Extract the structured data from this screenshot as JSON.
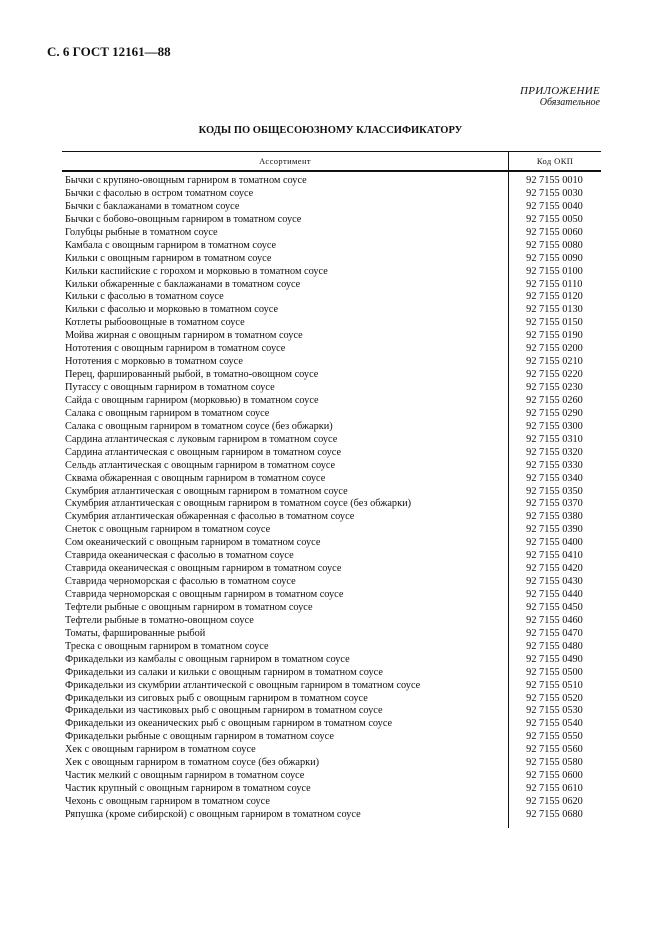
{
  "header": {
    "page_ref": "С. 6 ГОСТ 12161—88"
  },
  "appendix": {
    "label": "ПРИЛОЖЕНИЕ",
    "status": "Обязательное"
  },
  "title": "КОДЫ ПО ОБЩЕСОЮЗНОМУ КЛАССИФИКАТОРУ",
  "table": {
    "columns": [
      "Ассортимент",
      "Код ОКП"
    ],
    "rows": [
      [
        "Бычки с крупяно-овощным гарниром в томатном соусе",
        "92 7155 0010"
      ],
      [
        "Бычки с фасолью в остром томатном соусе",
        "92 7155 0030"
      ],
      [
        "Бычки с баклажанами в томатном соусе",
        "92 7155 0040"
      ],
      [
        "Бычки с бобово-овощным гарниром в томатном соусе",
        "92 7155 0050"
      ],
      [
        "Голубцы рыбные в томатном соусе",
        "92 7155 0060"
      ],
      [
        "Камбала с овощным гарниром в томатном соусе",
        "92 7155 0080"
      ],
      [
        "Кильки с овощным гарниром в томатном соусе",
        "92 7155 0090"
      ],
      [
        "Кильки каспийские с горохом и морковью в томатном соусе",
        "92 7155 0100"
      ],
      [
        "Кильки обжаренные с баклажанами в томатном соусе",
        "92 7155 0110"
      ],
      [
        "Кильки с фасолью в томатном соусе",
        "92 7155 0120"
      ],
      [
        "Кильки с фасолью и морковью в томатном соусе",
        "92 7155 0130"
      ],
      [
        "Котлеты рыбоовощные в томатном соусе",
        "92 7155 0150"
      ],
      [
        "Мойва жирная с овощным гарниром в томатном соусе",
        "92 7155 0190"
      ],
      [
        "Нототения с овощным гарниром в томатном соусе",
        "92 7155 0200"
      ],
      [
        "Нототения с морковью в томатном соусе",
        "92 7155 0210"
      ],
      [
        "Перец, фаршированный рыбой, в томатно-овощном соусе",
        "92 7155 0220"
      ],
      [
        "Путассу с овощным гарниром в томатном соусе",
        "92 7155 0230"
      ],
      [
        "Сайда с овощным гарниром (морковью) в томатном соусе",
        "92 7155 0260"
      ],
      [
        "Салака с овощным гарниром в томатном соусе",
        "92 7155 0290"
      ],
      [
        "Салака с овощным гарниром в томатном соусе (без обжарки)",
        "92 7155 0300"
      ],
      [
        "Сардина атлантическая с луковым гарниром в томатном соусе",
        "92 7155 0310"
      ],
      [
        "Сардина атлантическая с овощным гарниром в томатном соусе",
        "92 7155 0320"
      ],
      [
        "Сельдь атлантическая с овощным гарниром в томатном соусе",
        "92 7155 0330"
      ],
      [
        "Сквама обжаренная с овощным гарниром в томатном соусе",
        "92 7155 0340"
      ],
      [
        "Скумбрия атлантическая с овощным гарниром в томатном соусе",
        "92 7155 0350"
      ],
      [
        "Скумбрия атлантическая с овощным гарниром в томатном соусе (без обжарки)",
        "92 7155 0370"
      ],
      [
        "Скумбрия атлантическая обжаренная с фасолью в томатном соусе",
        "92 7155 0380"
      ],
      [
        "Снеток с овощным гарниром в томатном соусе",
        "92 7155 0390"
      ],
      [
        "Сом океанический с овощным гарниром в томатном соусе",
        "92 7155 0400"
      ],
      [
        "Ставрида океаническая с фасолью в томатном соусе",
        "92 7155 0410"
      ],
      [
        "Ставрида океаническая с овощным гарниром в томатном соусе",
        "92 7155 0420"
      ],
      [
        "Ставрида черноморская с фасолью в томатном соусе",
        "92 7155 0430"
      ],
      [
        "Ставрида черноморская с овощным гарниром в томатном соусе",
        "92 7155 0440"
      ],
      [
        "Тефтели рыбные с овощным гарниром в томатном соусе",
        "92 7155 0450"
      ],
      [
        "Тефтели рыбные в томатно-овощном соусе",
        "92 7155 0460"
      ],
      [
        "Томаты, фаршированные рыбой",
        "92 7155 0470"
      ],
      [
        "Треска с овощным гарниром в томатном соусе",
        "92 7155 0480"
      ],
      [
        "Фрикадельки из камбалы с овощным гарниром в томатном соусе",
        "92 7155 0490"
      ],
      [
        "Фрикадельки из салаки и кильки с овощным гарниром в томатном соусе",
        "92 7155 0500"
      ],
      [
        "Фрикадельки из скумбрии атлантической с овощным гарниром в томатном соусе",
        "92 7155 0510"
      ],
      [
        "Фрикадельки из сиговых рыб с овощным гарниром в томатном соусе",
        "92 7155 0520"
      ],
      [
        "Фрикадельки из частиковых рыб с овощным гарниром в томатном соусе",
        "92 7155 0530"
      ],
      [
        "Фрикадельки из океанических рыб с овощным гарниром в томатном соусе",
        "92 7155 0540"
      ],
      [
        "Фрикадельки рыбные с овощным гарниром в томатном соусе",
        "92 7155 0550"
      ],
      [
        "Хек с овощным гарниром в томатном соусе",
        "92 7155 0560"
      ],
      [
        "Хек с овощным гарниром в томатном соусе (без обжарки)",
        "92 7155 0580"
      ],
      [
        "Частик мелкий с овощным гарниром в томатном соусе",
        "92 7155 0600"
      ],
      [
        "Частик крупный с овощным гарниром в томатном соусе",
        "92 7155 0610"
      ],
      [
        "Чехонь с овощным гарниром в томатном соусе",
        "92 7155 0620"
      ],
      [
        "Ряпушка (кроме сибирской) с овощным гарниром в томатном соусе",
        "92 7155 0680"
      ]
    ]
  }
}
